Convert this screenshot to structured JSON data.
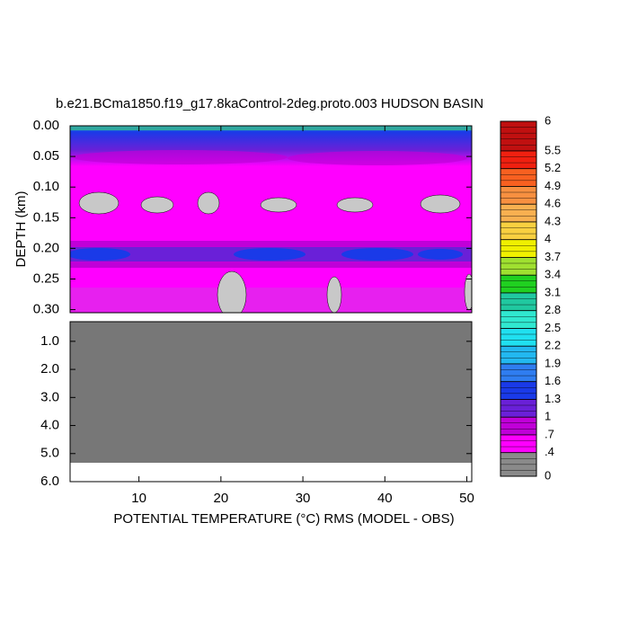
{
  "chart_data": {
    "type": "contour",
    "title": "b.e21.BCma1850.f19_g17.8kaControl-2deg.proto.003 HUDSON BASIN",
    "xlabel": "POTENTIAL TEMPERATURE (°C) RMS (MODEL - OBS)",
    "ylabel": "DEPTH (km)",
    "xlim": [
      1.6,
      50.6
    ],
    "xticks": [
      10,
      20,
      30,
      40,
      50
    ],
    "ylim": [
      0,
      0.305
    ],
    "yticks": [
      {
        "value": 0,
        "label": "0.00"
      },
      {
        "value": 0.05,
        "label": "0.05"
      },
      {
        "value": 0.1,
        "label": "0.10"
      },
      {
        "value": 0.15,
        "label": "0.15"
      },
      {
        "value": 0.2,
        "label": "0.20"
      },
      {
        "value": 0.25,
        "label": "0.25"
      },
      {
        "value": 0.3,
        "label": "0.30"
      }
    ],
    "y2lim": [
      0.3,
      6.0
    ],
    "y2ticks": [
      {
        "value": 1,
        "label": "1.0"
      },
      {
        "value": 2,
        "label": "2.0"
      },
      {
        "value": 3,
        "label": "3.0"
      },
      {
        "value": 4,
        "label": "4.0"
      },
      {
        "value": 5,
        "label": "5.0"
      },
      {
        "value": 6,
        "label": "6.0"
      }
    ],
    "colorbar": {
      "lim": [
        0,
        6
      ],
      "levels": [
        0,
        {
          "value": 0.4,
          "label": ".4"
        },
        {
          "value": 0.7,
          "label": ".7"
        },
        1,
        1.3,
        1.6,
        1.9,
        2.2,
        2.5,
        2.8,
        3.1,
        3.4,
        3.7,
        4,
        4.3,
        4.6,
        4.9,
        5.2,
        5.5,
        6
      ],
      "colors": [
        "#8a8a8a",
        "#ff00ff",
        "#c000d8",
        "#6a20d8",
        "#1a3ae8",
        "#2f7df0",
        "#22b8f0",
        "#20e0f0",
        "#30e8d0",
        "#20c8a0",
        "#20d020",
        "#a0e030",
        "#f0f000",
        "#f8d040",
        "#f8b050",
        "#f89040",
        "#f86020",
        "#f02010",
        "#c01010"
      ]
    }
  }
}
